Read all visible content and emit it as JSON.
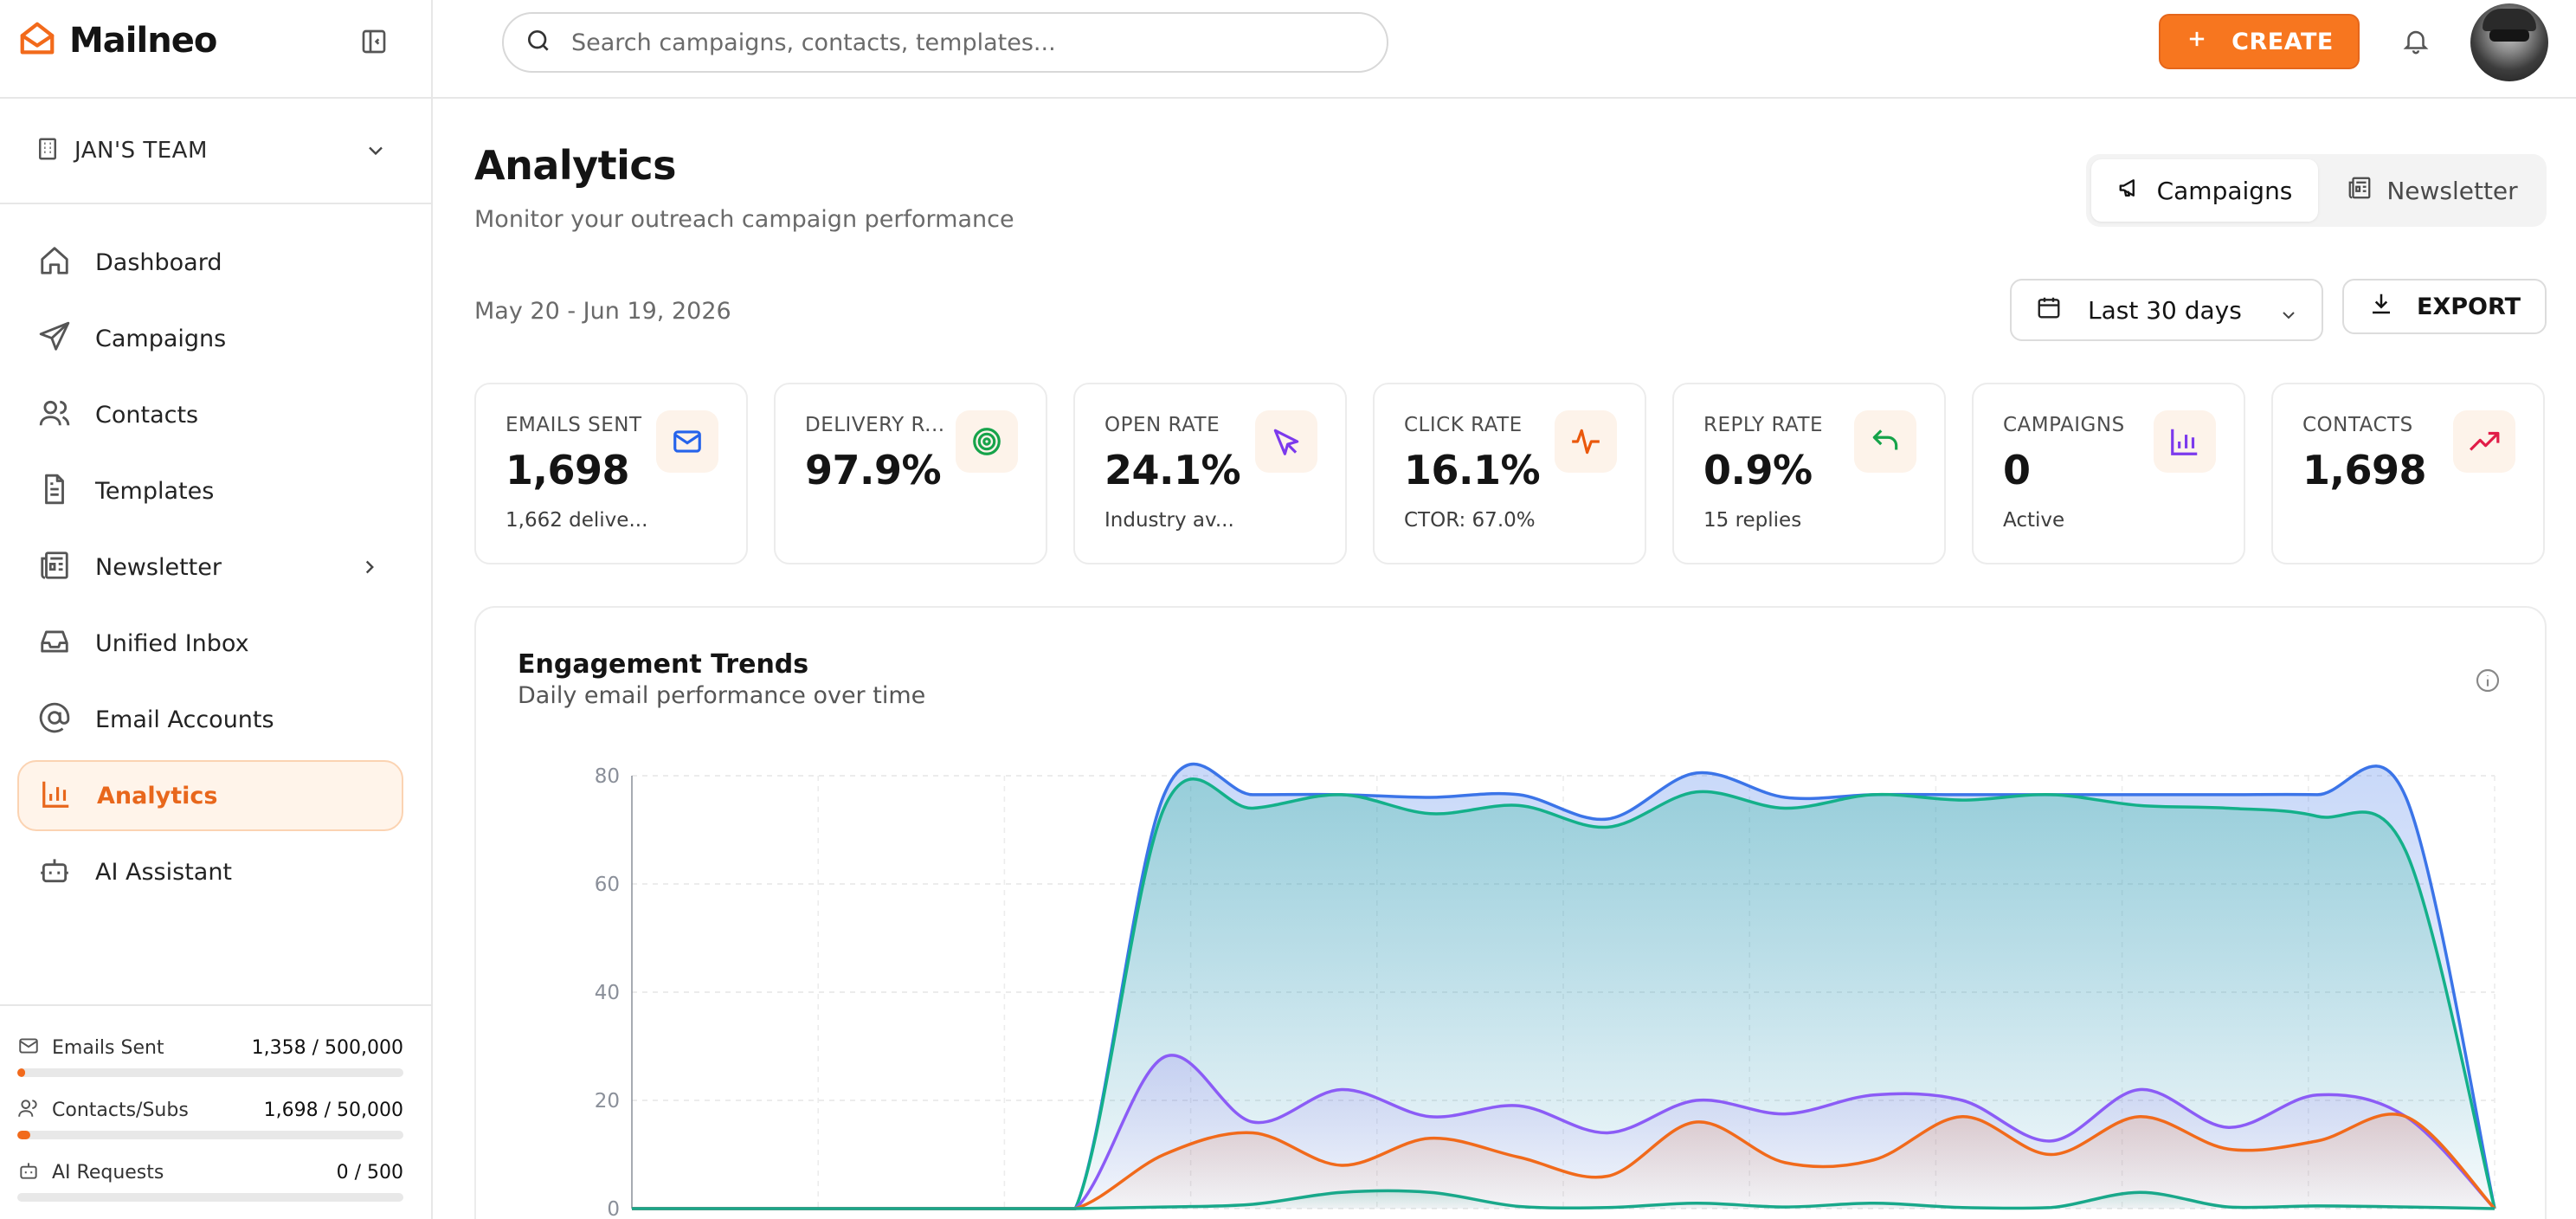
{
  "brand": {
    "name": "Mailneo"
  },
  "team": {
    "label": "JAN'S TEAM"
  },
  "nav": {
    "items": [
      {
        "label": "Dashboard",
        "icon": "home-icon"
      },
      {
        "label": "Campaigns",
        "icon": "send-icon"
      },
      {
        "label": "Contacts",
        "icon": "users-icon"
      },
      {
        "label": "Templates",
        "icon": "file-icon"
      },
      {
        "label": "Newsletter",
        "icon": "newspaper-icon"
      },
      {
        "label": "Unified Inbox",
        "icon": "inbox-icon"
      },
      {
        "label": "Email Accounts",
        "icon": "at-icon"
      },
      {
        "label": "Analytics",
        "icon": "bar-chart-icon",
        "active": true
      },
      {
        "label": "AI Assistant",
        "icon": "bot-icon"
      }
    ]
  },
  "usage": [
    {
      "label": "Emails Sent",
      "value": "1,358 / 500,000",
      "fraction": 0.0027
    },
    {
      "label": "Contacts/Subs",
      "value": "1,698 / 50,000",
      "fraction": 0.034
    },
    {
      "label": "AI Requests",
      "value": "0 / 500",
      "fraction": 0
    }
  ],
  "header": {
    "search_placeholder": "Search campaigns, contacts, templates...",
    "create_label": "CREATE"
  },
  "page": {
    "title": "Analytics",
    "subtitle": "Monitor your outreach campaign performance",
    "date_range": "May 20 - Jun 19, 2026",
    "period_label": "Last 30 days",
    "export_label": "EXPORT",
    "tabs": [
      {
        "label": "Campaigns",
        "active": true
      },
      {
        "label": "Newsletter",
        "active": false
      }
    ]
  },
  "stats": [
    {
      "label": "EMAILS SENT",
      "value": "1,698",
      "sub": "1,662 delive...",
      "icon": "mail-icon",
      "color": "#2563eb",
      "bg": "#fdf3ea"
    },
    {
      "label": "DELIVERY R...",
      "value": "97.9%",
      "sub": "",
      "icon": "target-icon",
      "color": "#16a34a",
      "bg": "#fdf3ea"
    },
    {
      "label": "OPEN RATE",
      "value": "24.1%",
      "sub": "Industry av...",
      "icon": "cursor-icon",
      "color": "#7c3aed",
      "bg": "#fdf3ea"
    },
    {
      "label": "CLICK RATE",
      "value": "16.1%",
      "sub": "CTOR: 67.0%",
      "icon": "activity-icon",
      "color": "#ea580c",
      "bg": "#fdf3ea"
    },
    {
      "label": "REPLY RATE",
      "value": "0.9%",
      "sub": "15 replies",
      "icon": "reply-icon",
      "color": "#16a34a",
      "bg": "#fdf3ea"
    },
    {
      "label": "CAMPAIGNS",
      "value": "0",
      "sub": "Active",
      "icon": "bar-chart-icon",
      "color": "#7c3aed",
      "bg": "#fdf3ea"
    },
    {
      "label": "CONTACTS",
      "value": "1,698",
      "sub": "",
      "icon": "trending-up-icon",
      "color": "#e11d48",
      "bg": "#fdf3ea"
    }
  ],
  "chart_panel": {
    "title": "Engagement Trends",
    "subtitle": "Daily email performance over time"
  },
  "chart_data": {
    "type": "area",
    "ylim": [
      0,
      80
    ],
    "y_ticks": [
      "0",
      "20",
      "40",
      "60",
      "80"
    ],
    "grid": true,
    "series": [
      {
        "color": "#3b74e8",
        "values": [
          0,
          0,
          0,
          0,
          0,
          0,
          76.5,
          76.5,
          76.5,
          76,
          76.5,
          72,
          80.5,
          76,
          76.5,
          76.5,
          76.5,
          76.5,
          76.5,
          76.5,
          76,
          0
        ]
      },
      {
        "color": "#14b08a",
        "values": [
          0,
          0,
          0,
          0,
          0,
          0,
          74,
          74,
          76.5,
          73,
          74.5,
          70.5,
          77,
          74,
          76.5,
          75.5,
          76.5,
          74.5,
          74,
          72.5,
          66,
          0
        ]
      },
      {
        "color": "#8b5cf6",
        "values": [
          0,
          0,
          0,
          0,
          0,
          0,
          28,
          16,
          22,
          17,
          19,
          14,
          20,
          17.5,
          21,
          20,
          12.5,
          22,
          15,
          21,
          17,
          0
        ]
      },
      {
        "color": "#f16a1b",
        "values": [
          0,
          0,
          0,
          0,
          0,
          0,
          10,
          14,
          8,
          13,
          9.5,
          6,
          16,
          8.5,
          9,
          17,
          10,
          17,
          11,
          12.5,
          17,
          0
        ]
      },
      {
        "color": "#19a88a",
        "values": [
          0,
          0,
          0,
          0,
          0,
          0,
          0.3,
          0.8,
          3,
          3,
          0.4,
          0.2,
          1,
          0.3,
          1,
          0.2,
          0.2,
          3,
          0.3,
          0.5,
          0.3,
          0
        ]
      }
    ]
  }
}
